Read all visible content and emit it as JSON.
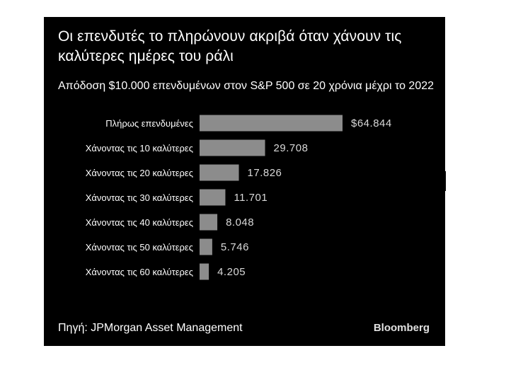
{
  "chart_data": {
    "type": "bar",
    "orientation": "horizontal",
    "title": "Οι επενδυτές το πληρώνουν ακριβά όταν χάνουν τις καλύτερες ημέρες του ράλι",
    "subtitle": "Απόδοση $10.000 επενδυμένων στον S&P 500 σε 20 χρόνια μέχρι το 2022",
    "categories": [
      "Πλήρως επενδυμένες",
      "Χάνοντας τις 10 καλύτερες",
      "Χάνοντας τις 20 καλύτερες",
      "Χάνοντας τις 30 καλύτερες",
      "Χάνοντας τις 40 καλύτερες",
      "Χάνοντας τις 50 καλύτερες",
      "Χάνοντας τις 60 καλύτερες"
    ],
    "values": [
      64844,
      29708,
      17826,
      11701,
      8048,
      5746,
      4205
    ],
    "value_labels": [
      "$64.844",
      "29.708",
      "17.826",
      "11.701",
      "8.048",
      "5.746",
      "4.205"
    ],
    "xlim": [
      0,
      64844
    ],
    "grid": false,
    "bar_color": "#8c8c8c",
    "background_color": "#000000",
    "text_color": "#ffffff"
  },
  "footer": {
    "source": "Πηγή: JPMorgan Asset Management",
    "brand": "Bloomberg"
  }
}
